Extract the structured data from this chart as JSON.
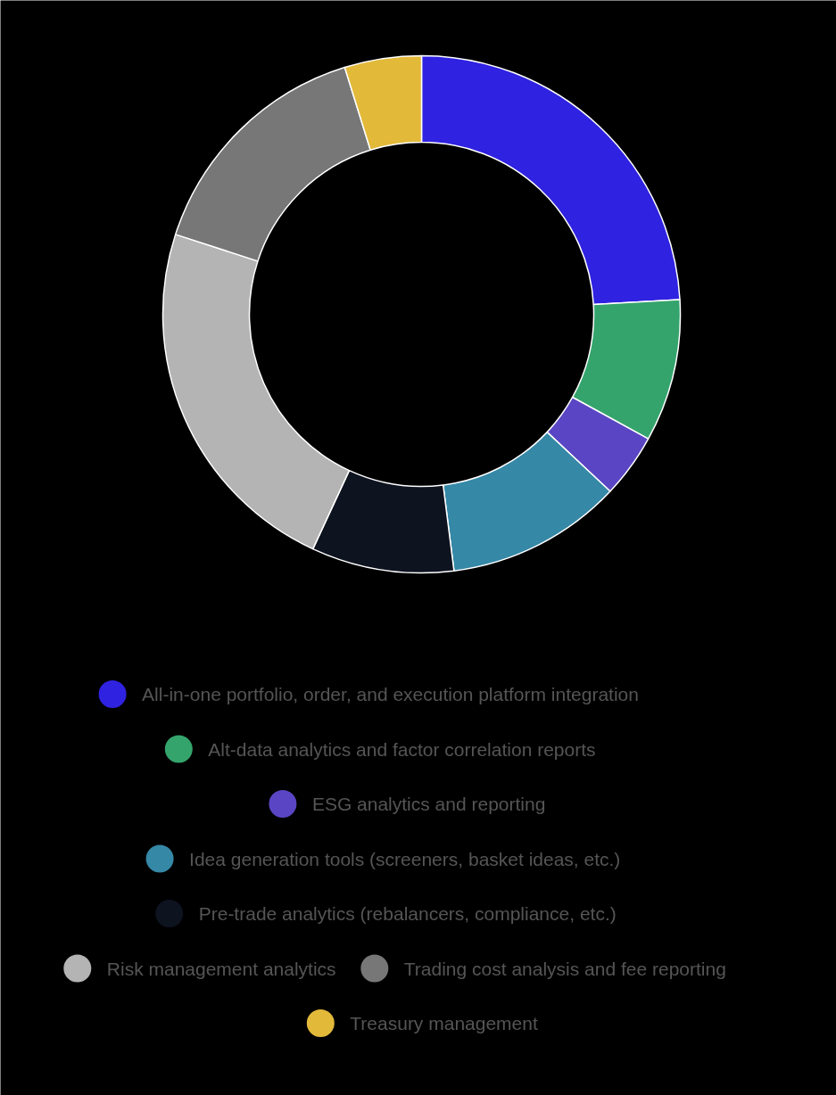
{
  "chart_data": {
    "type": "donut",
    "categories": [
      "All-in-one portfolio, order, and execution platform integration",
      "Alt-data analytics and factor correlation reports",
      "ESG analytics and reporting",
      "Idea generation tools (screeners, basket ideas, etc.)",
      "Pre-trade analytics (rebalancers, compliance, etc.)",
      "Risk management analytics",
      "Trading cost analysis and fee reporting",
      "Treasury management"
    ],
    "values": [
      24.1,
      8.9,
      4.0,
      11.0,
      8.9,
      23.1,
      15.2,
      4.8
    ],
    "colors": [
      "#2f22e0",
      "#34a46c",
      "#5a45c4",
      "#3588a6",
      "#0e1320",
      "#b4b4b4",
      "#777777",
      "#e3b93a"
    ],
    "legend": "bottom"
  }
}
